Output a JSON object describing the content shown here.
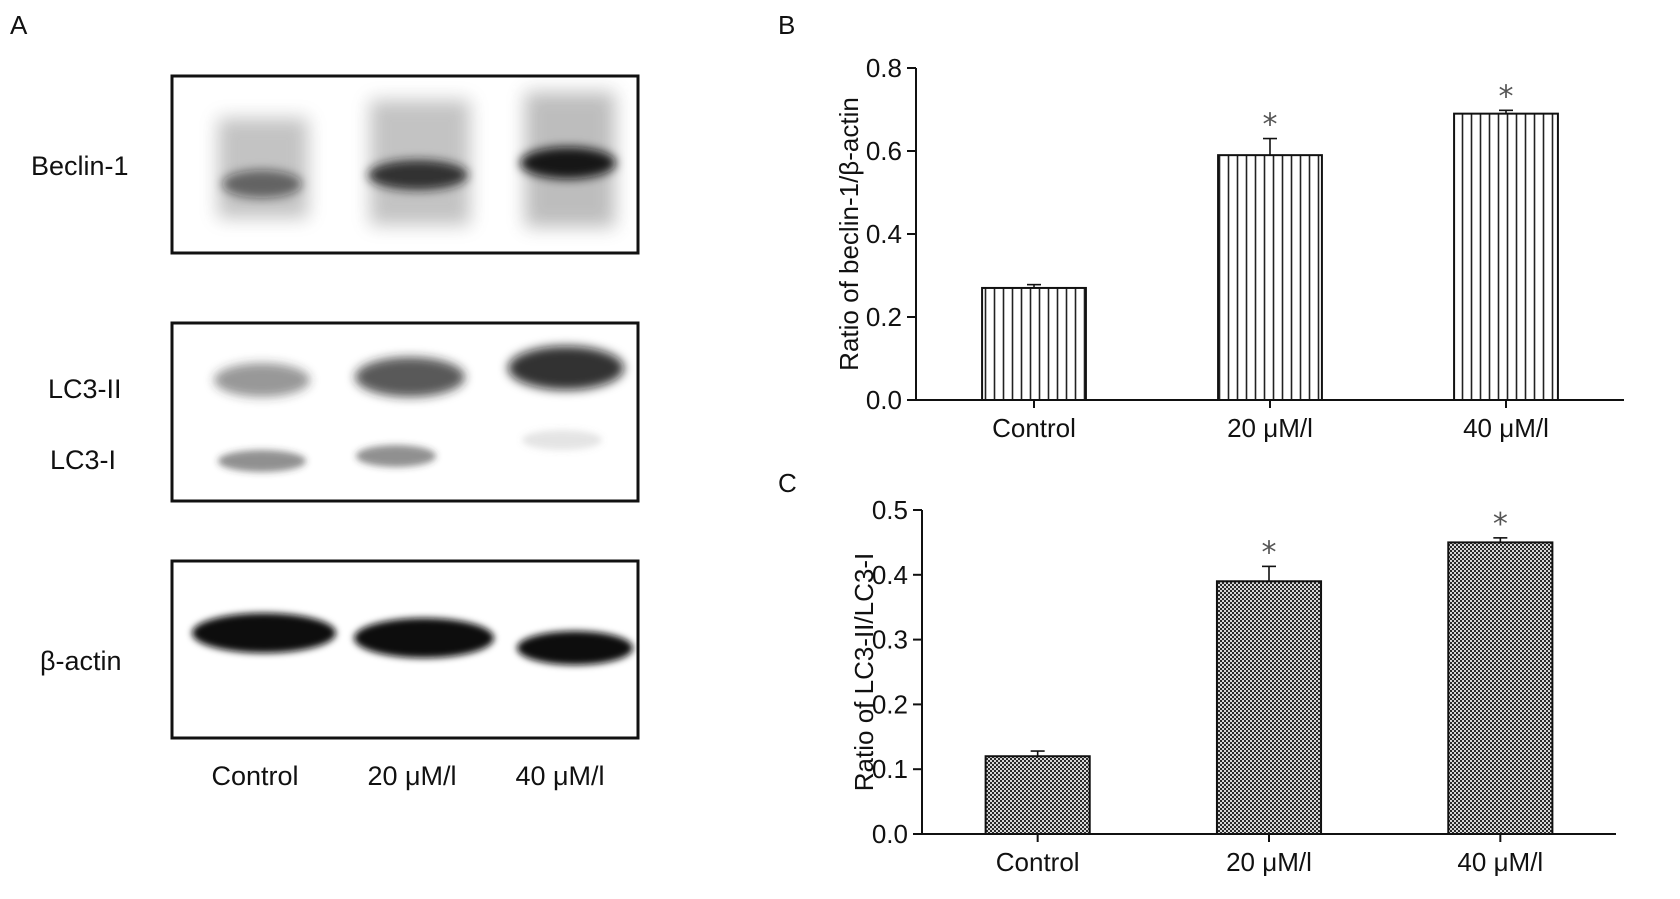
{
  "figure": {
    "panel_letters": [
      "A",
      "B",
      "C"
    ]
  },
  "blot": {
    "rows": [
      {
        "labels": [
          "Beclin-1"
        ]
      },
      {
        "labels": [
          "LC3-II",
          "LC3-I"
        ]
      },
      {
        "labels": [
          "β-actin"
        ]
      }
    ],
    "lanes": [
      "Control",
      "20 μM/l",
      "40 μM/l"
    ]
  },
  "chart_data": [
    {
      "type": "bar",
      "panel": "B",
      "categories": [
        "Control",
        "20 μM/l",
        "40 μM/l"
      ],
      "values": [
        0.27,
        0.59,
        0.69
      ],
      "errors": [
        0.008,
        0.04,
        0.008
      ],
      "significance": [
        "",
        "*",
        "*"
      ],
      "ylabel": "Ratio of beclin-1/β-actin",
      "ylim": [
        0,
        0.8
      ],
      "yticks": [
        "0.0",
        "0.2",
        "0.4",
        "0.6",
        "0.8"
      ],
      "fill_pattern": "vertical-stripes"
    },
    {
      "type": "bar",
      "panel": "C",
      "categories": [
        "Control",
        "20 μM/l",
        "40 μM/l"
      ],
      "values": [
        0.12,
        0.39,
        0.45
      ],
      "errors": [
        0.008,
        0.023,
        0.007
      ],
      "significance": [
        "",
        "*",
        "*"
      ],
      "ylabel": "Ratio of LC3-II/LC3-I",
      "ylim": [
        0,
        0.5
      ],
      "yticks": [
        "0.0",
        "0.1",
        "0.2",
        "0.3",
        "0.4",
        "0.5"
      ],
      "fill_pattern": "crosshatch"
    }
  ],
  "colors": {
    "ink": "#111111",
    "band": "#1a1a1a",
    "star": "#555555"
  }
}
